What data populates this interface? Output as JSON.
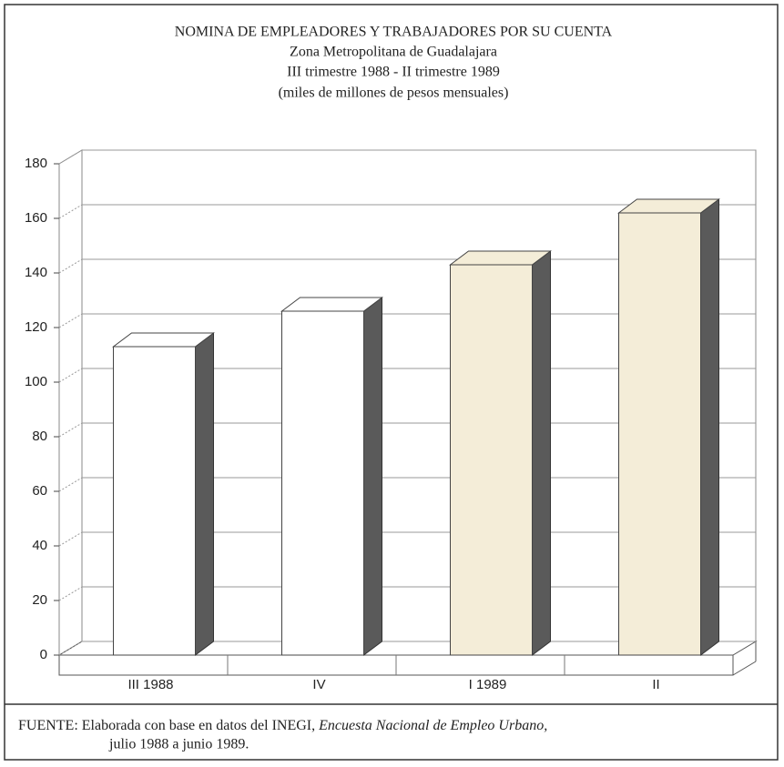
{
  "chart_data": {
    "type": "bar3d",
    "title": "NOMINA DE EMPLEADORES Y TRABAJADORES POR SU CUENTA",
    "subtitle": [
      "Zona Metropolitana de Guadalajara",
      "III trimestre 1988 - II trimestre 1989",
      "(miles de millones de pesos mensuales)"
    ],
    "categories": [
      "III  1988",
      "IV",
      "I  1989",
      "II"
    ],
    "values": [
      113,
      126,
      143,
      162
    ],
    "colors": [
      "#ffffff",
      "#ffffff",
      "#f4edd8",
      "#f4edd8"
    ],
    "ylim": [
      0,
      180
    ],
    "yticks": [
      0,
      20,
      40,
      60,
      80,
      100,
      120,
      140,
      160,
      180
    ],
    "grid": true,
    "source": {
      "prefix": "FUENTE: Elaborada con base en datos del INEGI, ",
      "italic": "Encuesta Nacional de Empleo Urbano,",
      "end": "julio 1988 a junio 1989."
    }
  }
}
